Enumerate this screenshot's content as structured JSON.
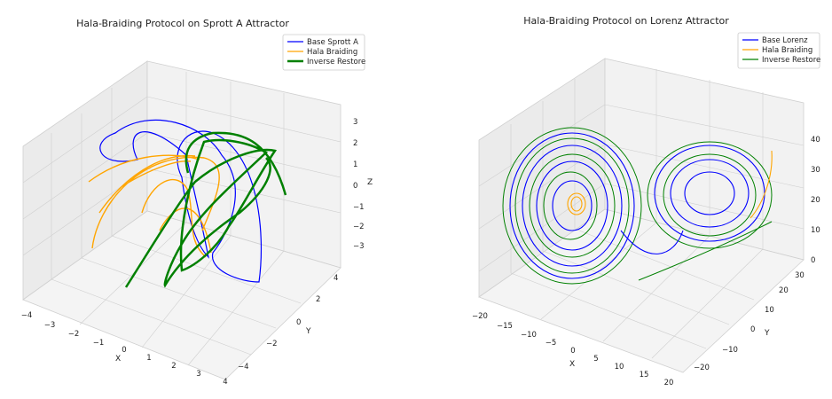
{
  "figure": {
    "background": "#ffffff"
  },
  "chart_data": [
    {
      "type": "line",
      "projection": "3d",
      "title": "Hala-Braiding Protocol on Sprott A Attractor",
      "xlabel": "X",
      "ylabel": "Y",
      "zlabel": "Z",
      "xlim": [
        -4,
        4
      ],
      "ylim": [
        -4,
        4
      ],
      "zlim": [
        -3,
        3
      ],
      "x_ticks": [
        "−4",
        "−3",
        "−2",
        "−1",
        "0",
        "1",
        "2",
        "3",
        "4"
      ],
      "y_ticks": [
        "−4",
        "−2",
        "0",
        "2",
        "4"
      ],
      "z_ticks": [
        "−3",
        "−2",
        "−1",
        "0",
        "1",
        "2",
        "3"
      ],
      "grid": true,
      "legend_position": "top-right",
      "series": [
        {
          "name": "Base Sprott A",
          "color": "#0000ff",
          "linewidth": 1
        },
        {
          "name": "Hala Braiding",
          "color": "#ffa500",
          "linewidth": 1
        },
        {
          "name": "Inverse Restore",
          "color": "#008000",
          "linewidth": 2
        }
      ]
    },
    {
      "type": "line",
      "projection": "3d",
      "title": "Hala-Braiding Protocol on Lorenz Attractor",
      "xlabel": "X",
      "ylabel": "Y",
      "zlabel": "",
      "xlim": [
        -20,
        20
      ],
      "ylim": [
        -25,
        30
      ],
      "zlim": [
        0,
        48
      ],
      "x_ticks": [
        "−20",
        "−15",
        "−10",
        "−5",
        "0",
        "5",
        "10",
        "15",
        "20"
      ],
      "y_ticks": [
        "−20",
        "−10",
        "0",
        "10",
        "20",
        "30"
      ],
      "z_ticks": [
        "0",
        "10",
        "20",
        "30",
        "40"
      ],
      "grid": true,
      "legend_position": "top-right",
      "series": [
        {
          "name": "Base Lorenz",
          "color": "#0000ff",
          "linewidth": 1
        },
        {
          "name": "Hala Braiding",
          "color": "#ffa500",
          "linewidth": 1
        },
        {
          "name": "Inverse Restore",
          "color": "#008000",
          "linewidth": 1
        }
      ]
    }
  ]
}
